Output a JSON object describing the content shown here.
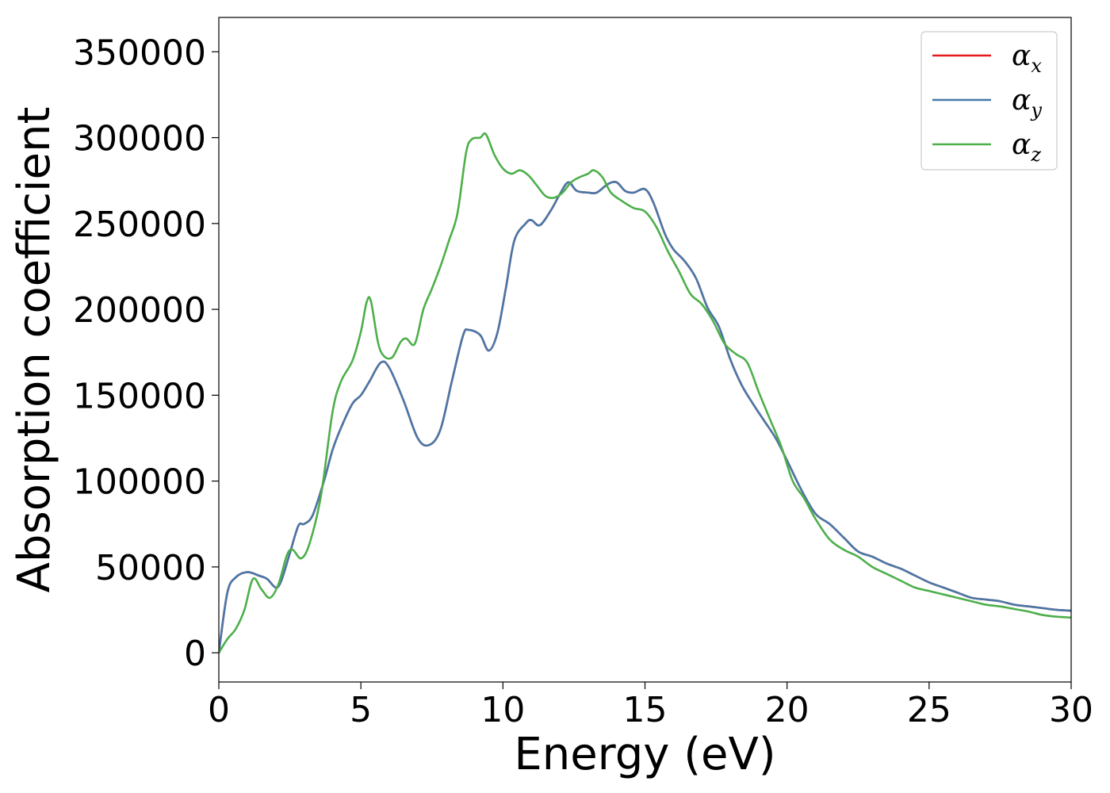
{
  "chart_data": {
    "type": "line",
    "title": "",
    "xlabel": "Energy (eV)",
    "ylabel": "Absorption coefficient",
    "xlim": [
      0,
      30
    ],
    "ylim": [
      -17000,
      370000
    ],
    "xticks": [
      0,
      5,
      10,
      15,
      20,
      25,
      30
    ],
    "yticks": [
      0,
      50000,
      100000,
      150000,
      200000,
      250000,
      300000,
      350000
    ],
    "grid": false,
    "legend_position": "top-right",
    "series": [
      {
        "name": "α_x",
        "label_main": "α",
        "label_sub": "x",
        "color": "#e41a1c",
        "x": [
          0,
          0.3,
          0.6,
          1.0,
          1.4,
          1.7,
          2.0,
          2.2,
          2.5,
          2.8,
          3.0,
          3.3,
          3.7,
          4.0,
          4.3,
          4.7,
          5.0,
          5.3,
          5.7,
          6.0,
          6.5,
          7.0,
          7.4,
          7.8,
          8.2,
          8.6,
          8.8,
          9.2,
          9.5,
          9.8,
          10.1,
          10.4,
          10.8,
          11.0,
          11.3,
          11.7,
          12.0,
          12.3,
          12.6,
          13.0,
          13.3,
          13.7,
          14.0,
          14.3,
          14.6,
          15.0,
          15.3,
          15.7,
          16.0,
          16.4,
          16.8,
          17.2,
          17.6,
          18.0,
          18.4,
          18.8,
          19.2,
          19.6,
          20.0,
          20.5,
          21.0,
          21.5,
          22.0,
          22.5,
          23.0,
          23.5,
          24.0,
          24.5,
          25.0,
          25.5,
          26.0,
          26.5,
          27.0,
          27.5,
          28.0,
          28.5,
          29.0,
          29.5,
          30.0
        ],
        "values": [
          0,
          35000,
          44000,
          47000,
          45000,
          43000,
          38000,
          42000,
          58000,
          74000,
          75000,
          80000,
          100000,
          118000,
          131000,
          145000,
          150000,
          158000,
          169000,
          166000,
          147000,
          125000,
          121000,
          130000,
          158000,
          185000,
          188000,
          185000,
          176000,
          186000,
          212000,
          240000,
          250000,
          252000,
          249000,
          258000,
          267000,
          274000,
          269000,
          268000,
          268000,
          273000,
          274000,
          269000,
          268000,
          270000,
          262000,
          244000,
          235000,
          228000,
          218000,
          201000,
          190000,
          171000,
          156000,
          145000,
          135000,
          125000,
          112000,
          95000,
          81000,
          75000,
          67000,
          59000,
          56000,
          52000,
          49000,
          45000,
          41000,
          38000,
          35000,
          32000,
          31000,
          30000,
          28000,
          27000,
          26000,
          25000,
          24500
        ]
      },
      {
        "name": "α_y",
        "label_main": "α",
        "label_sub": "y",
        "color": "#4878a8",
        "x": [
          0,
          0.3,
          0.6,
          1.0,
          1.4,
          1.7,
          2.0,
          2.2,
          2.5,
          2.8,
          3.0,
          3.3,
          3.7,
          4.0,
          4.3,
          4.7,
          5.0,
          5.3,
          5.7,
          6.0,
          6.5,
          7.0,
          7.4,
          7.8,
          8.2,
          8.6,
          8.8,
          9.2,
          9.5,
          9.8,
          10.1,
          10.4,
          10.8,
          11.0,
          11.3,
          11.7,
          12.0,
          12.3,
          12.6,
          13.0,
          13.3,
          13.7,
          14.0,
          14.3,
          14.6,
          15.0,
          15.3,
          15.7,
          16.0,
          16.4,
          16.8,
          17.2,
          17.6,
          18.0,
          18.4,
          18.8,
          19.2,
          19.6,
          20.0,
          20.5,
          21.0,
          21.5,
          22.0,
          22.5,
          23.0,
          23.5,
          24.0,
          24.5,
          25.0,
          25.5,
          26.0,
          26.5,
          27.0,
          27.5,
          28.0,
          28.5,
          29.0,
          29.5,
          30.0
        ],
        "values": [
          0,
          35000,
          44000,
          47000,
          45000,
          43000,
          38000,
          42000,
          58000,
          74000,
          75000,
          80000,
          100000,
          118000,
          131000,
          145000,
          150000,
          158000,
          169000,
          166000,
          147000,
          125000,
          121000,
          130000,
          158000,
          185000,
          188000,
          185000,
          176000,
          186000,
          212000,
          240000,
          250000,
          252000,
          249000,
          258000,
          267000,
          274000,
          269000,
          268000,
          268000,
          273000,
          274000,
          269000,
          268000,
          270000,
          262000,
          244000,
          235000,
          228000,
          218000,
          201000,
          190000,
          171000,
          156000,
          145000,
          135000,
          125000,
          112000,
          95000,
          81000,
          75000,
          67000,
          59000,
          56000,
          52000,
          49000,
          45000,
          41000,
          38000,
          35000,
          32000,
          31000,
          30000,
          28000,
          27000,
          26000,
          25000,
          24500
        ]
      },
      {
        "name": "α_z",
        "label_main": "α",
        "label_sub": "z",
        "color": "#4daf4a",
        "x": [
          0,
          0.3,
          0.6,
          0.9,
          1.2,
          1.5,
          1.8,
          2.1,
          2.4,
          2.6,
          2.9,
          3.2,
          3.6,
          4.0,
          4.3,
          4.7,
          5.0,
          5.2,
          5.35,
          5.6,
          5.8,
          6.1,
          6.4,
          6.6,
          6.9,
          7.2,
          7.5,
          7.8,
          8.1,
          8.4,
          8.7,
          8.9,
          9.2,
          9.4,
          9.7,
          10.0,
          10.3,
          10.6,
          10.9,
          11.2,
          11.5,
          11.8,
          12.1,
          12.4,
          12.7,
          13.0,
          13.2,
          13.5,
          13.8,
          14.2,
          14.6,
          15.0,
          15.4,
          15.8,
          16.2,
          16.6,
          17.0,
          17.4,
          17.8,
          18.2,
          18.6,
          19.0,
          19.4,
          19.8,
          20.2,
          20.6,
          21.0,
          21.5,
          22.0,
          22.5,
          23.0,
          23.5,
          24.0,
          24.5,
          25.0,
          25.5,
          26.0,
          26.5,
          27.0,
          27.5,
          28.0,
          28.5,
          29.0,
          29.5,
          30.0
        ],
        "values": [
          0,
          8000,
          14000,
          25000,
          43000,
          37000,
          32000,
          40000,
          57000,
          60000,
          55000,
          64000,
          92000,
          140000,
          158000,
          170000,
          187000,
          204000,
          205000,
          181000,
          173000,
          172000,
          181000,
          183000,
          180000,
          200000,
          212000,
          225000,
          240000,
          256000,
          291000,
          299000,
          300000,
          302000,
          290000,
          282000,
          279000,
          281000,
          278000,
          272000,
          266000,
          265000,
          268000,
          274000,
          277000,
          279000,
          281000,
          277000,
          268000,
          263000,
          259000,
          257000,
          248000,
          234000,
          222000,
          209000,
          203000,
          193000,
          180000,
          174000,
          169000,
          152000,
          136000,
          120000,
          100000,
          90000,
          78000,
          66000,
          60000,
          56000,
          50000,
          46000,
          42000,
          38000,
          36000,
          34000,
          32000,
          30000,
          28000,
          27000,
          25500,
          24000,
          22000,
          21000,
          20500
        ]
      }
    ]
  }
}
